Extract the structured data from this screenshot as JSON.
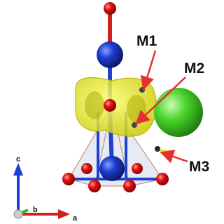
{
  "labels": {
    "m1": "M1",
    "m2": "M2",
    "m3": "M3"
  },
  "axes": {
    "c": "c",
    "b": "b",
    "a": "a"
  }
}
